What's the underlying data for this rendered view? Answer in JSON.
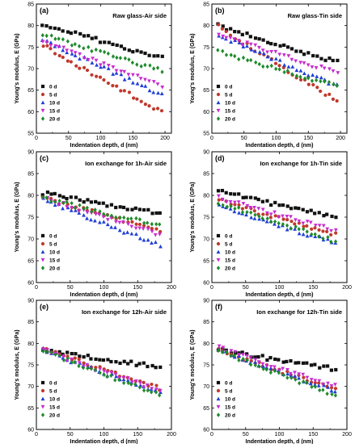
{
  "chart_data": [
    {
      "type": "scatter",
      "letter": "(a)",
      "title": "Raw glass-Air side",
      "xlabel": "Indentation depth, d (nm)",
      "ylabel": "Young's modulus, E (GPa)",
      "xlim": [
        0,
        210
      ],
      "ylim": [
        55,
        85
      ],
      "xticks": [
        0,
        50,
        100,
        150,
        200
      ],
      "yticks": [
        55,
        60,
        65,
        70,
        75,
        80,
        85
      ],
      "legend_position": "bottom-left",
      "series": [
        {
          "name": "0 d",
          "color": "#111111",
          "marker": "square",
          "start": 80.5,
          "end": 72.5
        },
        {
          "name": "5 d",
          "color": "#c0392b",
          "marker": "circle",
          "start": 75.5,
          "end": 60.0
        },
        {
          "name": "10 d",
          "color": "#1f3fd6",
          "marker": "triangle-up",
          "start": 77.0,
          "end": 64.0
        },
        {
          "name": "15 d",
          "color": "#c72ccf",
          "marker": "triangle-down",
          "start": 76.5,
          "end": 66.0
        },
        {
          "name": "20 d",
          "color": "#1e8a2a",
          "marker": "diamond",
          "start": 78.0,
          "end": 69.5
        }
      ]
    },
    {
      "type": "scatter",
      "letter": "(b)",
      "title": "Raw glass-Tin side",
      "xlabel": "Indentation depth, d (nm)",
      "ylabel": "Young's modulus, E (GPa)",
      "xlim": [
        0,
        210
      ],
      "ylim": [
        55,
        85
      ],
      "xticks": [
        0,
        50,
        100,
        150,
        200
      ],
      "yticks": [
        55,
        60,
        65,
        70,
        75,
        80,
        85
      ],
      "legend_position": "bottom-left",
      "series": [
        {
          "name": "0 d",
          "color": "#111111",
          "marker": "square",
          "start": 80.0,
          "end": 71.5
        },
        {
          "name": "5 d",
          "color": "#c0392b",
          "marker": "circle",
          "start": 80.0,
          "end": 62.5
        },
        {
          "name": "10 d",
          "color": "#1f3fd6",
          "marker": "triangle-up",
          "start": 78.0,
          "end": 66.0
        },
        {
          "name": "15 d",
          "color": "#c72ccf",
          "marker": "triangle-down",
          "start": 78.0,
          "end": 69.0
        },
        {
          "name": "20 d",
          "color": "#1e8a2a",
          "marker": "diamond",
          "start": 74.0,
          "end": 66.0
        }
      ]
    },
    {
      "type": "scatter",
      "letter": "(c)",
      "title": "Ion exchange for 1h-Air side",
      "xlabel": "Indentation depth, d (nm)",
      "ylabel": "Young's modulus, E (GPa)",
      "xlim": [
        0,
        200
      ],
      "ylim": [
        60,
        90
      ],
      "xticks": [
        0,
        50,
        100,
        150,
        200
      ],
      "yticks": [
        60,
        65,
        70,
        75,
        80,
        85,
        90
      ],
      "legend_position": "bottom-left",
      "series": [
        {
          "name": "0 d",
          "color": "#111111",
          "marker": "square",
          "start": 80.5,
          "end": 76.0
        },
        {
          "name": "5 d",
          "color": "#c0392b",
          "marker": "circle",
          "start": 79.5,
          "end": 72.0
        },
        {
          "name": "10 d",
          "color": "#1f3fd6",
          "marker": "triangle-up",
          "start": 79.5,
          "end": 68.5
        },
        {
          "name": "15 d",
          "color": "#c72ccf",
          "marker": "triangle-down",
          "start": 79.5,
          "end": 71.0
        },
        {
          "name": "20 d",
          "color": "#1e8a2a",
          "marker": "diamond",
          "start": 79.5,
          "end": 73.0
        }
      ]
    },
    {
      "type": "scatter",
      "letter": "(d)",
      "title": "Ion exchange for 1h-Tin side",
      "xlabel": "Indentation depth, d (nm)",
      "ylabel": "Young's modulus, E (GPa)",
      "xlim": [
        0,
        200
      ],
      "ylim": [
        60,
        90
      ],
      "xticks": [
        0,
        50,
        100,
        150,
        200
      ],
      "yticks": [
        60,
        65,
        70,
        75,
        80,
        85,
        90
      ],
      "legend_position": "bottom-left",
      "series": [
        {
          "name": "0 d",
          "color": "#111111",
          "marker": "square",
          "start": 81.0,
          "end": 75.0
        },
        {
          "name": "5 d",
          "color": "#c0392b",
          "marker": "circle",
          "start": 79.0,
          "end": 71.0
        },
        {
          "name": "10 d",
          "color": "#1f3fd6",
          "marker": "triangle-up",
          "start": 78.0,
          "end": 69.0
        },
        {
          "name": "15 d",
          "color": "#c72ccf",
          "marker": "triangle-down",
          "start": 79.5,
          "end": 72.0
        },
        {
          "name": "20 d",
          "color": "#1e8a2a",
          "marker": "diamond",
          "start": 78.5,
          "end": 69.5
        }
      ]
    },
    {
      "type": "scatter",
      "letter": "(e)",
      "title": "Ion exchange for 12h-Air side",
      "xlabel": "Indentation depth, d (nm)",
      "ylabel": "Young's modulus, E (GPa)",
      "xlim": [
        0,
        200
      ],
      "ylim": [
        60,
        90
      ],
      "xticks": [
        0,
        50,
        100,
        150,
        200
      ],
      "yticks": [
        60,
        65,
        70,
        75,
        80,
        85,
        90
      ],
      "legend_position": "bottom-left",
      "series": [
        {
          "name": "0 d",
          "color": "#111111",
          "marker": "square",
          "start": 78.5,
          "end": 74.5
        },
        {
          "name": "5 d",
          "color": "#c0392b",
          "marker": "circle",
          "start": 79.0,
          "end": 69.5
        },
        {
          "name": "10 d",
          "color": "#1f3fd6",
          "marker": "triangle-up",
          "start": 78.5,
          "end": 68.5
        },
        {
          "name": "15 d",
          "color": "#c72ccf",
          "marker": "triangle-down",
          "start": 78.5,
          "end": 69.0
        },
        {
          "name": "20 d",
          "color": "#1e8a2a",
          "marker": "diamond",
          "start": 78.5,
          "end": 68.0
        }
      ]
    },
    {
      "type": "scatter",
      "letter": "(f)",
      "title": "Ion exchange for 12h-Tin side",
      "xlabel": "Indentation depth, d (nm)",
      "ylabel": "Young's modulus, E (GPa)",
      "xlim": [
        0,
        200
      ],
      "ylim": [
        60,
        90
      ],
      "xticks": [
        0,
        50,
        100,
        150,
        200
      ],
      "yticks": [
        60,
        65,
        70,
        75,
        80,
        85,
        90
      ],
      "legend_position": "bottom-left",
      "series": [
        {
          "name": "0 d",
          "color": "#111111",
          "marker": "square",
          "start": 78.5,
          "end": 74.0
        },
        {
          "name": "5 d",
          "color": "#c0392b",
          "marker": "circle",
          "start": 78.5,
          "end": 69.5
        },
        {
          "name": "10 d",
          "color": "#1f3fd6",
          "marker": "triangle-up",
          "start": 78.5,
          "end": 69.0
        },
        {
          "name": "15 d",
          "color": "#c72ccf",
          "marker": "triangle-down",
          "start": 79.0,
          "end": 70.0
        },
        {
          "name": "20 d",
          "color": "#1e8a2a",
          "marker": "diamond",
          "start": 78.5,
          "end": 68.0
        }
      ]
    }
  ]
}
